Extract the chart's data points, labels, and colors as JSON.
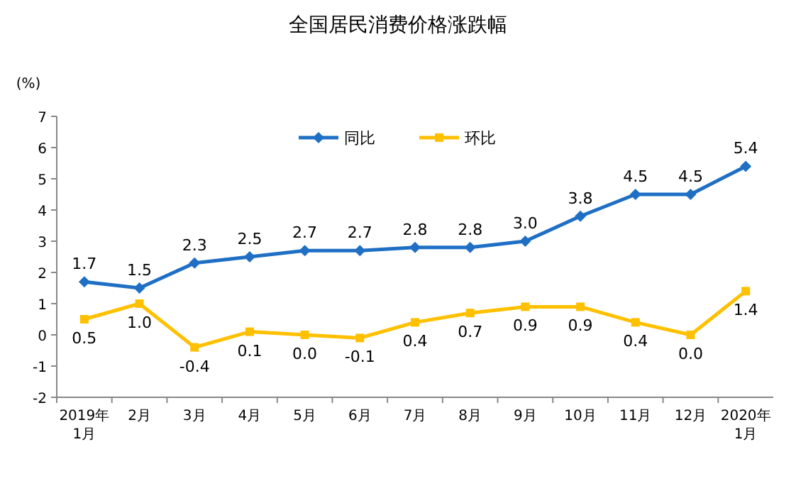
{
  "chart_data": {
    "type": "line",
    "title": "全国居民消费价格涨跌幅",
    "ylabel": "(%)",
    "categories": [
      "2019年\n1月",
      "2月",
      "3月",
      "4月",
      "5月",
      "6月",
      "7月",
      "8月",
      "9月",
      "10月",
      "11月",
      "12月",
      "2020年\n1月"
    ],
    "series": [
      {
        "name": "同比",
        "color": "#1f6fc5",
        "marker": "diamond",
        "values": [
          1.7,
          1.5,
          2.3,
          2.5,
          2.7,
          2.7,
          2.8,
          2.8,
          3.0,
          3.8,
          4.5,
          4.5,
          5.4
        ],
        "value_labels": [
          "1.7",
          "1.5",
          "2.3",
          "2.5",
          "2.7",
          "2.7",
          "2.8",
          "2.8",
          "3.0",
          "3.8",
          "4.5",
          "4.5",
          "5.4"
        ]
      },
      {
        "name": "环比",
        "color": "#ffc000",
        "marker": "square",
        "values": [
          0.5,
          1.0,
          -0.4,
          0.1,
          0.0,
          -0.1,
          0.4,
          0.7,
          0.9,
          0.9,
          0.4,
          0.0,
          1.4
        ],
        "value_labels": [
          "0.5",
          "1.0",
          "-0.4",
          "0.1",
          "0.0",
          "-0.1",
          "0.4",
          "0.7",
          "0.9",
          "0.9",
          "0.4",
          "0.0",
          "1.4"
        ]
      }
    ],
    "ylim": [
      -2,
      7
    ],
    "yticks": [
      -2,
      -1,
      0,
      1,
      2,
      3,
      4,
      5,
      6,
      7
    ],
    "grid": false,
    "legend": "top",
    "line_style": "solid"
  }
}
